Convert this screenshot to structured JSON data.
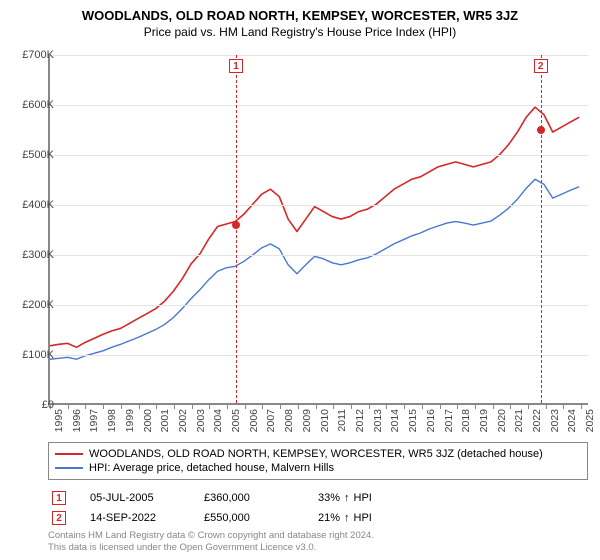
{
  "header": {
    "title": "WOODLANDS, OLD ROAD NORTH, KEMPSEY, WORCESTER, WR5 3JZ",
    "subtitle": "Price paid vs. HM Land Registry's House Price Index (HPI)",
    "title_fontsize": 13,
    "subtitle_fontsize": 12
  },
  "chart": {
    "type": "line",
    "background_color": "#ffffff",
    "grid_color": "#e5e5e5",
    "axis_color": "#888888",
    "x_years": [
      1995,
      1996,
      1997,
      1998,
      1999,
      2000,
      2001,
      2002,
      2003,
      2004,
      2005,
      2006,
      2007,
      2008,
      2009,
      2010,
      2011,
      2012,
      2013,
      2014,
      2015,
      2016,
      2017,
      2018,
      2019,
      2020,
      2021,
      2022,
      2023,
      2024,
      2025
    ],
    "xlim": [
      1995,
      2025.5
    ],
    "ylim": [
      0,
      700000
    ],
    "ytick_step": 100000,
    "ytick_prefix": "£",
    "ytick_suffix": "K",
    "series": [
      {
        "name": "property",
        "label": "WOODLANDS, OLD ROAD NORTH, KEMPSEY, WORCESTER, WR5 3JZ (detached house)",
        "color": "#d62728",
        "line_width": 1.6,
        "data": [
          [
            1995.0,
            115
          ],
          [
            1995.5,
            118
          ],
          [
            1996.0,
            120
          ],
          [
            1996.5,
            112
          ],
          [
            1997.0,
            122
          ],
          [
            1997.5,
            130
          ],
          [
            1998.0,
            138
          ],
          [
            1998.5,
            145
          ],
          [
            1999.0,
            150
          ],
          [
            1999.5,
            160
          ],
          [
            2000.0,
            170
          ],
          [
            2000.5,
            180
          ],
          [
            2001.0,
            190
          ],
          [
            2001.5,
            205
          ],
          [
            2002.0,
            225
          ],
          [
            2002.5,
            250
          ],
          [
            2003.0,
            280
          ],
          [
            2003.5,
            300
          ],
          [
            2004.0,
            330
          ],
          [
            2004.5,
            355
          ],
          [
            2005.0,
            360
          ],
          [
            2005.5,
            365
          ],
          [
            2006.0,
            380
          ],
          [
            2006.5,
            400
          ],
          [
            2007.0,
            420
          ],
          [
            2007.5,
            430
          ],
          [
            2008.0,
            415
          ],
          [
            2008.5,
            370
          ],
          [
            2009.0,
            345
          ],
          [
            2009.5,
            370
          ],
          [
            2010.0,
            395
          ],
          [
            2010.5,
            385
          ],
          [
            2011.0,
            375
          ],
          [
            2011.5,
            370
          ],
          [
            2012.0,
            375
          ],
          [
            2012.5,
            385
          ],
          [
            2013.0,
            390
          ],
          [
            2013.5,
            400
          ],
          [
            2014.0,
            415
          ],
          [
            2014.5,
            430
          ],
          [
            2015.0,
            440
          ],
          [
            2015.5,
            450
          ],
          [
            2016.0,
            455
          ],
          [
            2016.5,
            465
          ],
          [
            2017.0,
            475
          ],
          [
            2017.5,
            480
          ],
          [
            2018.0,
            485
          ],
          [
            2018.5,
            480
          ],
          [
            2019.0,
            475
          ],
          [
            2019.5,
            480
          ],
          [
            2020.0,
            485
          ],
          [
            2020.5,
            500
          ],
          [
            2021.0,
            520
          ],
          [
            2021.5,
            545
          ],
          [
            2022.0,
            575
          ],
          [
            2022.5,
            595
          ],
          [
            2023.0,
            580
          ],
          [
            2023.5,
            545
          ],
          [
            2024.0,
            555
          ],
          [
            2024.5,
            565
          ],
          [
            2025.0,
            575
          ]
        ]
      },
      {
        "name": "hpi",
        "label": "HPI: Average price, detached house, Malvern Hills",
        "color": "#4878cf",
        "line_width": 1.4,
        "data": [
          [
            1995.0,
            88
          ],
          [
            1995.5,
            90
          ],
          [
            1996.0,
            92
          ],
          [
            1996.5,
            88
          ],
          [
            1997.0,
            95
          ],
          [
            1997.5,
            100
          ],
          [
            1998.0,
            105
          ],
          [
            1998.5,
            112
          ],
          [
            1999.0,
            118
          ],
          [
            1999.5,
            125
          ],
          [
            2000.0,
            132
          ],
          [
            2000.5,
            140
          ],
          [
            2001.0,
            148
          ],
          [
            2001.5,
            158
          ],
          [
            2002.0,
            172
          ],
          [
            2002.5,
            190
          ],
          [
            2003.0,
            210
          ],
          [
            2003.5,
            228
          ],
          [
            2004.0,
            248
          ],
          [
            2004.5,
            265
          ],
          [
            2005.0,
            272
          ],
          [
            2005.5,
            275
          ],
          [
            2006.0,
            285
          ],
          [
            2006.5,
            298
          ],
          [
            2007.0,
            312
          ],
          [
            2007.5,
            320
          ],
          [
            2008.0,
            310
          ],
          [
            2008.5,
            278
          ],
          [
            2009.0,
            260
          ],
          [
            2009.5,
            278
          ],
          [
            2010.0,
            295
          ],
          [
            2010.5,
            290
          ],
          [
            2011.0,
            282
          ],
          [
            2011.5,
            278
          ],
          [
            2012.0,
            282
          ],
          [
            2012.5,
            288
          ],
          [
            2013.0,
            292
          ],
          [
            2013.5,
            300
          ],
          [
            2014.0,
            310
          ],
          [
            2014.5,
            320
          ],
          [
            2015.0,
            328
          ],
          [
            2015.5,
            336
          ],
          [
            2016.0,
            342
          ],
          [
            2016.5,
            350
          ],
          [
            2017.0,
            356
          ],
          [
            2017.5,
            362
          ],
          [
            2018.0,
            365
          ],
          [
            2018.5,
            362
          ],
          [
            2019.0,
            358
          ],
          [
            2019.5,
            362
          ],
          [
            2020.0,
            366
          ],
          [
            2020.5,
            378
          ],
          [
            2021.0,
            392
          ],
          [
            2021.5,
            410
          ],
          [
            2022.0,
            432
          ],
          [
            2022.5,
            450
          ],
          [
            2023.0,
            440
          ],
          [
            2023.5,
            412
          ],
          [
            2024.0,
            420
          ],
          [
            2024.5,
            428
          ],
          [
            2025.0,
            435
          ]
        ]
      }
    ],
    "sale_markers": [
      {
        "n": "1",
        "year": 2005.51,
        "price": 360,
        "color": "#d62728"
      },
      {
        "n": "2",
        "year": 2022.71,
        "price": 550,
        "color": "#d62728"
      }
    ]
  },
  "legend": {
    "items": [
      {
        "color": "#d62728",
        "text": "WOODLANDS, OLD ROAD NORTH, KEMPSEY, WORCESTER, WR5 3JZ (detached house)"
      },
      {
        "color": "#4878cf",
        "text": "HPI: Average price, detached house, Malvern Hills"
      }
    ]
  },
  "sales": [
    {
      "n": "1",
      "color": "#d62728",
      "date": "05-JUL-2005",
      "price": "£360,000",
      "pct": "33%",
      "arrow": "↑",
      "vs": "HPI"
    },
    {
      "n": "2",
      "color": "#d62728",
      "date": "14-SEP-2022",
      "price": "£550,000",
      "pct": "21%",
      "arrow": "↑",
      "vs": "HPI"
    }
  ],
  "footer": {
    "line1": "Contains HM Land Registry data © Crown copyright and database right 2024.",
    "line2": "This data is licensed under the Open Government Licence v3.0."
  }
}
